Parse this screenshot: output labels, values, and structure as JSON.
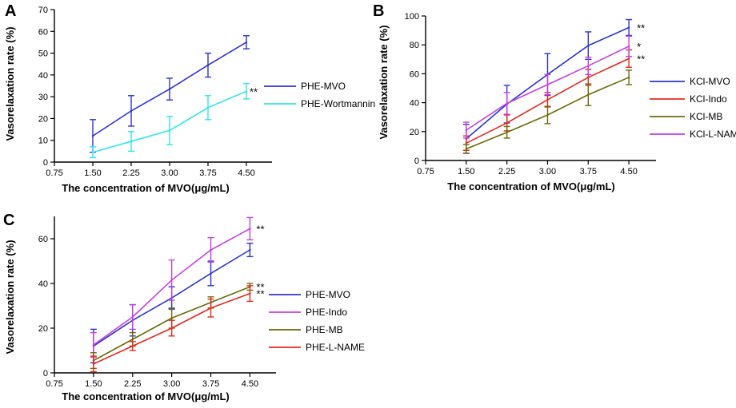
{
  "chart_data": [
    {
      "panel": "A",
      "type": "line",
      "ylabel": "Vasorelaxation rate (%)",
      "xlabel": "The concentration of MVO(μg/mL)",
      "x_ticks": [
        "0.75",
        "1.50",
        "2.25",
        "3.00",
        "3.75",
        "4.50"
      ],
      "x": [
        1.5,
        2.25,
        3.0,
        3.75,
        4.5
      ],
      "xlim": [
        0.75,
        5.0
      ],
      "ylim": [
        0,
        70
      ],
      "y_ticks": [
        "0",
        "10",
        "20",
        "30",
        "40",
        "50",
        "60",
        "70"
      ],
      "legend": "right",
      "series": [
        {
          "name": "PHE-MVO",
          "color": "#2b35d6",
          "values": [
            12,
            23.5,
            33.5,
            44.5,
            55
          ],
          "errors": [
            7.5,
            7,
            5,
            5.5,
            3
          ],
          "sig": ""
        },
        {
          "name": "PHE-Wortmannin",
          "color": "#2ee6ec",
          "values": [
            4.5,
            9.5,
            14.5,
            25,
            32.5
          ],
          "errors": [
            2.5,
            4.5,
            6.5,
            5.5,
            3.5
          ],
          "sig": "**"
        }
      ]
    },
    {
      "panel": "B",
      "type": "line",
      "ylabel": "Vasorelaxation rate (%)",
      "xlabel": "The concentration of MVO(μg/mL)",
      "x_ticks": [
        "0.75",
        "1.50",
        "2.25",
        "3.00",
        "3.75",
        "4.50"
      ],
      "x": [
        1.5,
        2.25,
        3.0,
        3.75,
        4.5
      ],
      "xlim": [
        0.75,
        5.0
      ],
      "ylim": [
        0,
        100
      ],
      "y_ticks": [
        "0",
        "20",
        "40",
        "60",
        "80",
        "100"
      ],
      "legend": "right",
      "series": [
        {
          "name": "KCl-MVO",
          "color": "#2b35d6",
          "values": [
            15,
            39,
            59.5,
            79.5,
            92
          ],
          "errors": [
            10,
            13,
            14.5,
            9.5,
            5.5
          ],
          "sig": "**"
        },
        {
          "name": "KCl-Indo",
          "color": "#e8281e",
          "values": [
            12,
            26,
            42,
            57.5,
            70.5
          ],
          "errors": [
            5,
            5.5,
            5,
            5.5,
            6
          ],
          "sig": "**"
        },
        {
          "name": "KCl-MB",
          "color": "#6b6a08",
          "values": [
            8,
            19.5,
            31.5,
            45.5,
            57.5
          ],
          "errors": [
            3,
            4,
            6,
            7.5,
            5
          ],
          "sig": ""
        },
        {
          "name": "KCl-L-NAME",
          "color": "#c63fe0",
          "values": [
            21,
            39.5,
            52.5,
            65.5,
            79
          ],
          "errors": [
            5.5,
            7.5,
            7,
            6,
            7
          ],
          "sig": "*"
        }
      ]
    },
    {
      "panel": "C",
      "type": "line",
      "ylabel": "Vasorelaxation rate (%)",
      "xlabel": "The concentration of MVO(μg/mL)",
      "x_ticks": [
        "0.75",
        "1.50",
        "2.25",
        "3.00",
        "3.75",
        "4.50"
      ],
      "x": [
        1.5,
        2.25,
        3.0,
        3.75,
        4.5
      ],
      "xlim": [
        0.75,
        5.0
      ],
      "ylim": [
        0,
        70
      ],
      "y_ticks": [
        "0",
        "20",
        "40",
        "60"
      ],
      "legend": "right",
      "series": [
        {
          "name": "PHE-MVO",
          "color": "#2b35d6",
          "values": [
            12,
            23.5,
            33.5,
            44.5,
            55
          ],
          "errors": [
            7.5,
            7,
            5,
            5.5,
            3
          ],
          "sig": ""
        },
        {
          "name": "PHE-Indo",
          "color": "#c63fe0",
          "values": [
            12.5,
            25,
            41.5,
            55,
            64.5
          ],
          "errors": [
            5.5,
            5.5,
            9,
            5.5,
            5
          ],
          "sig": "**"
        },
        {
          "name": "PHE-MB",
          "color": "#6b6a08",
          "values": [
            5.5,
            15,
            24.5,
            31.5,
            38.5
          ],
          "errors": [
            3.5,
            3,
            4.5,
            2.5,
            1.5
          ],
          "sig": "**"
        },
        {
          "name": "PHE-L-NAME",
          "color": "#e8281e",
          "values": [
            4,
            12,
            20,
            29,
            35.5
          ],
          "errors": [
            3.5,
            2,
            3.5,
            4,
            3.5
          ],
          "sig": "**"
        }
      ]
    }
  ]
}
